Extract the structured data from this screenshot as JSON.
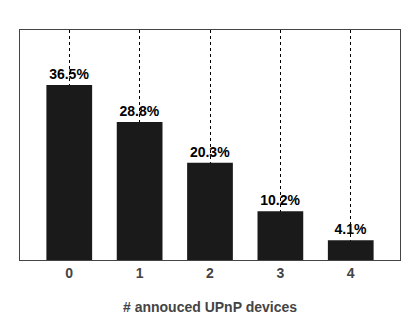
{
  "chart_data": {
    "type": "bar",
    "xlabel": "# annouced UPnP devices",
    "x": [
      0,
      1,
      2,
      3,
      4
    ],
    "values": [
      36.5,
      28.8,
      20.3,
      10.2,
      4.1
    ],
    "value_labels": [
      "36.5%",
      "28.8%",
      "20.3%",
      "10.2%",
      "4.1%"
    ],
    "data_labels": true,
    "color": "#1a1a1a",
    "xlim": [
      -0.7,
      4.7
    ],
    "xticks": [
      0,
      1,
      2,
      3,
      4
    ],
    "ylim": [
      0,
      48
    ],
    "yticks": [],
    "grid": "x",
    "tick_labels": "x"
  }
}
